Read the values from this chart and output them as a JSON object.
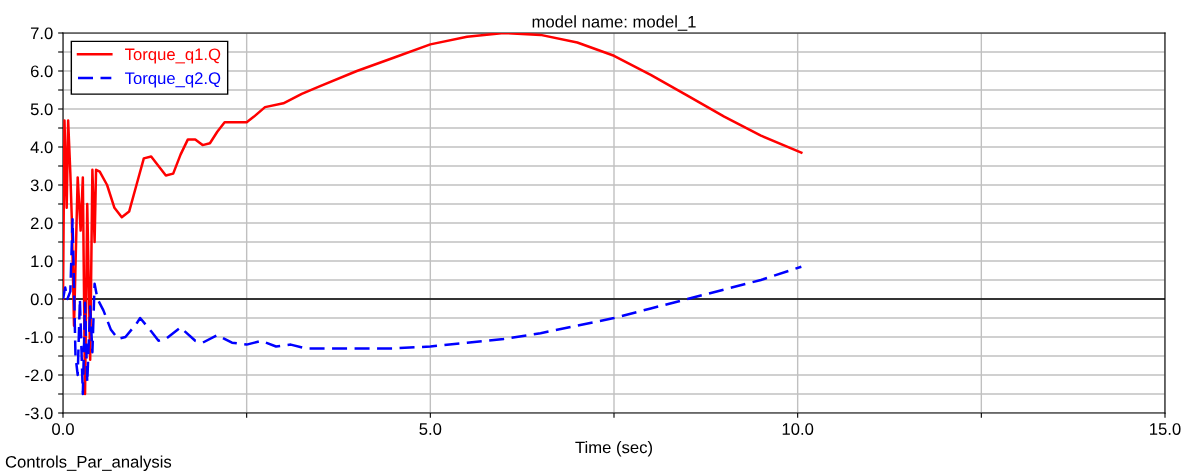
{
  "chart_data": {
    "type": "line",
    "title": "model name: model_1",
    "xlabel": "Time (sec)",
    "annotations": [
      "Controls_Par_analysis"
    ],
    "xlim": [
      0,
      15
    ],
    "xticks": [
      {
        "value": 0,
        "label": "0.0"
      },
      {
        "value": 2.5,
        "label": null
      },
      {
        "value": 5,
        "label": "5.0"
      },
      {
        "value": 7.5,
        "label": null
      },
      {
        "value": 10,
        "label": "10.0"
      },
      {
        "value": 12.5,
        "label": null
      },
      {
        "value": 15,
        "label": "15.0"
      }
    ],
    "ylim": [
      -3,
      7
    ],
    "yticks": [
      {
        "value": -3,
        "label": "-3.0"
      },
      {
        "value": -2.5,
        "label": null
      },
      {
        "value": -2,
        "label": "-2.0"
      },
      {
        "value": -1.5,
        "label": null
      },
      {
        "value": -1,
        "label": "-1.0"
      },
      {
        "value": -0.5,
        "label": null
      },
      {
        "value": 0,
        "label": "0.0"
      },
      {
        "value": 0.5,
        "label": null
      },
      {
        "value": 1,
        "label": "1.0"
      },
      {
        "value": 1.5,
        "label": null
      },
      {
        "value": 2,
        "label": "2.0"
      },
      {
        "value": 2.5,
        "label": null
      },
      {
        "value": 3,
        "label": "3.0"
      },
      {
        "value": 3.5,
        "label": null
      },
      {
        "value": 4,
        "label": "4.0"
      },
      {
        "value": 4.5,
        "label": null
      },
      {
        "value": 5,
        "label": "5.0"
      },
      {
        "value": 5.5,
        "label": null
      },
      {
        "value": 6,
        "label": "6.0"
      },
      {
        "value": 6.5,
        "label": null
      },
      {
        "value": 7,
        "label": "7.0"
      }
    ],
    "grid": true,
    "legend": "top left",
    "ref_lines": [
      {
        "axis": "y",
        "value": 0,
        "color": "#000000"
      }
    ],
    "series": [
      {
        "name": "Torque_q1.Q",
        "color": "#ff0000",
        "line_style": "solid",
        "x": [
          0,
          0.02,
          0.05,
          0.07,
          0.1,
          0.12,
          0.15,
          0.2,
          0.24,
          0.27,
          0.3,
          0.33,
          0.37,
          0.4,
          0.43,
          0.45,
          0.5,
          0.6,
          0.7,
          0.8,
          0.9,
          1.0,
          1.1,
          1.2,
          1.3,
          1.4,
          1.5,
          1.6,
          1.7,
          1.8,
          1.9,
          2.0,
          2.1,
          2.2,
          2.3,
          2.5,
          2.6,
          2.75,
          3.0,
          3.25,
          3.5,
          4.0,
          4.5,
          5.0,
          5.5,
          6.0,
          6.5,
          7.0,
          7.5,
          8.0,
          8.5,
          9.0,
          9.5,
          10.05
        ],
        "values": [
          0.0,
          4.7,
          2.4,
          4.7,
          3.3,
          2.1,
          -0.7,
          3.2,
          1.8,
          3.2,
          -2.5,
          2.5,
          -1.6,
          3.4,
          1.5,
          3.4,
          3.35,
          3.0,
          2.4,
          2.15,
          2.3,
          3.0,
          3.7,
          3.75,
          3.5,
          3.25,
          3.3,
          3.8,
          4.2,
          4.2,
          4.05,
          4.1,
          4.4,
          4.65,
          4.65,
          4.65,
          4.8,
          5.05,
          5.15,
          5.4,
          5.6,
          6.0,
          6.35,
          6.7,
          6.9,
          7.0,
          6.95,
          6.75,
          6.4,
          5.9,
          5.35,
          4.8,
          4.3,
          3.85
        ]
      },
      {
        "name": "Torque_q2.Q",
        "color": "#0000ff",
        "line_style": "dashed",
        "x": [
          0,
          0.03,
          0.06,
          0.1,
          0.13,
          0.17,
          0.2,
          0.23,
          0.27,
          0.3,
          0.33,
          0.37,
          0.4,
          0.43,
          0.47,
          0.55,
          0.65,
          0.75,
          0.85,
          1.0,
          1.05,
          1.2,
          1.3,
          1.4,
          1.6,
          1.8,
          1.9,
          2.1,
          2.3,
          2.5,
          2.7,
          2.9,
          3.1,
          3.3,
          4.0,
          4.5,
          5.0,
          5.5,
          6.0,
          6.5,
          7.0,
          7.5,
          8.0,
          8.5,
          9.0,
          9.5,
          10.05
        ],
        "values": [
          0,
          0.3,
          0.0,
          0.2,
          2.1,
          -1.5,
          -2.0,
          0.0,
          -2.5,
          -0.1,
          -2.2,
          -0.2,
          -1.4,
          0.4,
          0.0,
          -0.3,
          -0.8,
          -1.05,
          -1.0,
          -0.65,
          -0.5,
          -0.85,
          -1.1,
          -1.05,
          -0.75,
          -1.1,
          -1.15,
          -0.95,
          -1.15,
          -1.2,
          -1.1,
          -1.25,
          -1.2,
          -1.3,
          -1.3,
          -1.3,
          -1.25,
          -1.15,
          -1.05,
          -0.9,
          -0.7,
          -0.5,
          -0.25,
          0.0,
          0.25,
          0.5,
          0.85
        ]
      }
    ]
  }
}
